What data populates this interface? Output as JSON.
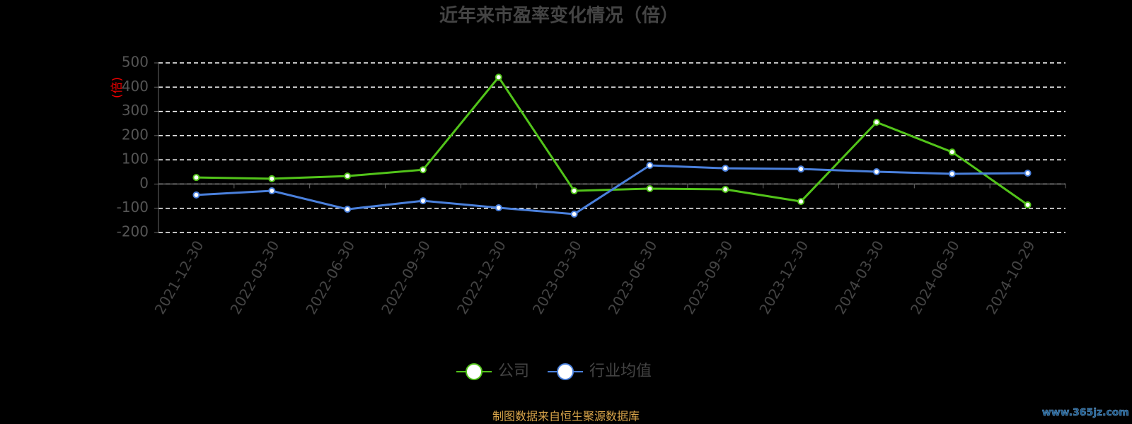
{
  "chart_data": {
    "type": "line",
    "title": "近年来市盈率变化情况（倍）",
    "y_label": "(倍)",
    "categories": [
      "2021-12-30",
      "2022-03-30",
      "2022-06-30",
      "2022-09-30",
      "2022-12-30",
      "2023-03-30",
      "2023-06-30",
      "2023-09-30",
      "2023-12-30",
      "2024-03-30",
      "2024-06-30",
      "2024-10-29"
    ],
    "series": [
      {
        "name": "公司",
        "color": "#52c41a",
        "values": [
          27,
          22,
          33,
          59,
          441,
          -28,
          -19,
          -22,
          -72,
          255,
          132,
          -86
        ]
      },
      {
        "name": "行业均值",
        "color": "#4a80dc",
        "values": [
          -45,
          -28,
          -104,
          -69,
          -98,
          -124,
          77,
          65,
          62,
          51,
          42,
          45
        ]
      }
    ],
    "ylim": [
      -200,
      500
    ],
    "yticks": [
      -200,
      -100,
      0,
      100,
      200,
      300,
      400,
      500
    ],
    "grid": true,
    "legend": "bottom",
    "source": "制图数据来自恒生聚源数据库",
    "watermark": "www.365jz.com"
  }
}
